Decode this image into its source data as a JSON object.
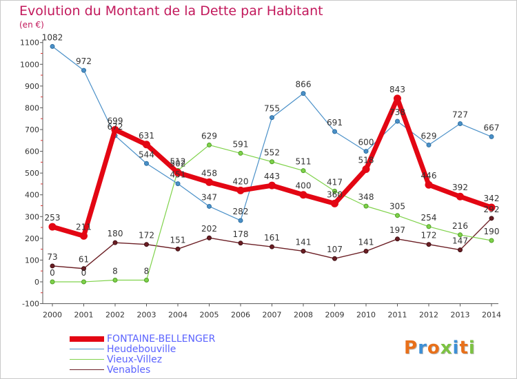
{
  "chart_data": {
    "type": "line",
    "title": "Evolution du Montant de la Dette par Habitant",
    "subtitle": "(en €)",
    "x": [
      "2000",
      "2001",
      "2002",
      "2003",
      "2004",
      "2005",
      "2006",
      "2007",
      "2008",
      "2009",
      "2010",
      "2011",
      "2012",
      "2013",
      "2014"
    ],
    "ylim": [
      -100,
      1100
    ],
    "yticks": [
      -100,
      0,
      100,
      200,
      300,
      400,
      500,
      600,
      700,
      800,
      900,
      1000,
      1100
    ],
    "grid": false,
    "legend_position": "bottom-left",
    "series": [
      {
        "name": "FONTAINE-BELLENGER",
        "color": "#e30613",
        "values": [
          253,
          211,
          699,
          631,
          502,
          458,
          420,
          443,
          400,
          360,
          518,
          843,
          446,
          392,
          342
        ]
      },
      {
        "name": "Heudebouville",
        "color": "#4a90c8",
        "values": [
          1082,
          972,
          672,
          544,
          451,
          347,
          282,
          755,
          866,
          691,
          600,
          738,
          629,
          727,
          667
        ]
      },
      {
        "name": "Vieux-Villez",
        "color": "#7fd24a",
        "values": [
          0,
          0,
          8,
          8,
          512,
          629,
          591,
          552,
          511,
          417,
          348,
          305,
          254,
          216,
          190
        ]
      },
      {
        "name": "Venables",
        "color": "#6b1e24",
        "values": [
          73,
          61,
          180,
          172,
          151,
          202,
          178,
          161,
          141,
          107,
          141,
          197,
          172,
          147,
          292
        ]
      }
    ],
    "data_labels": {
      "FONTAINE-BELLENGER": [
        "253",
        "211",
        "699",
        "631",
        "502",
        "458",
        "420",
        "443",
        "400",
        "360",
        "518",
        "843",
        "446",
        "392",
        "342"
      ],
      "Heudebouville": [
        "1082",
        "972",
        "672",
        "544",
        "451",
        "347",
        "282",
        "755",
        "866",
        "691",
        "600",
        "738",
        "629",
        "727",
        "667"
      ],
      "Vieux-Villez": [
        "0",
        "0",
        "8",
        "8",
        "512",
        "629",
        "591",
        "552",
        "511",
        "417",
        "348",
        "305",
        "254",
        "216",
        "190"
      ],
      "Venables": [
        "73",
        "61",
        "180",
        "172",
        "151",
        "202",
        "178",
        "161",
        "141",
        "107",
        "141",
        "197",
        "172",
        "147",
        "292"
      ]
    }
  },
  "logo": {
    "letters": [
      {
        "ch": "P",
        "color": "#e8701a"
      },
      {
        "ch": "r",
        "color": "#3c8fd6"
      },
      {
        "ch": "o",
        "color": "#e8701a"
      },
      {
        "ch": "x",
        "color": "#7cc242"
      },
      {
        "ch": "i",
        "color": "#3c8fd6"
      },
      {
        "ch": "t",
        "color": "#e8701a"
      },
      {
        "ch": "i",
        "color": "#7cc242"
      }
    ]
  }
}
